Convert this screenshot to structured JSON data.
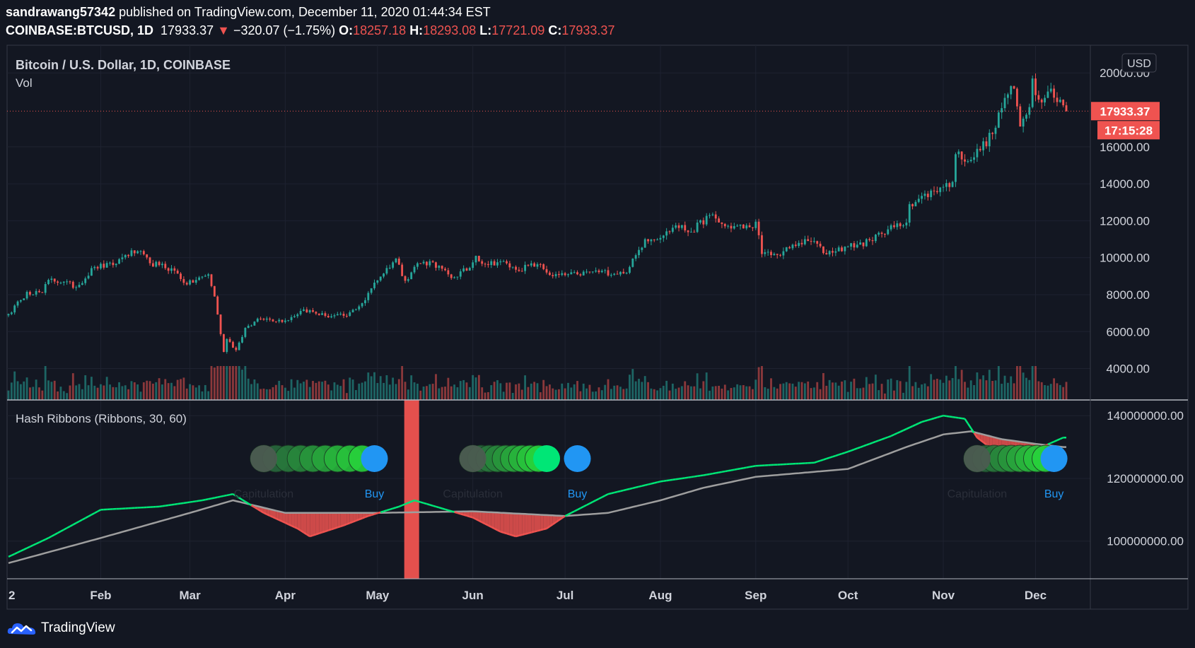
{
  "header": {
    "author": "sandrawang57342",
    "published": "published on TradingView.com, December 11, 2020 01:44:34 EST",
    "symbol": "COINBASE:BTCUSD, 1D",
    "last": "17933.37",
    "change_arrow": "▼",
    "change": "−320.07 (−1.75%)",
    "o_label": "O:",
    "o": "18257.18",
    "h_label": "H:",
    "h": "18293.08",
    "l_label": "L:",
    "l": "17721.09",
    "c_label": "C:",
    "c": "17933.37"
  },
  "brand": {
    "name": "TradingView",
    "icon": "tradingview-cloud-logo-icon"
  },
  "colors": {
    "background": "#131722",
    "grid": "#1e2230",
    "text": "#d1d4dc",
    "up": "#26a69a",
    "down": "#ef5350",
    "hash_fast": "#00e676",
    "hash_slow": "#9e9e9e",
    "buy": "#2196f3",
    "capitulation_text": "#2a2e39",
    "highlight": "#ef5350"
  },
  "chart_data": [
    {
      "type": "candlestick",
      "title": "Bitcoin / U.S. Dollar, 1D, COINBASE",
      "legend": [
        "Vol"
      ],
      "currency": "USD",
      "last_price": "17933.37",
      "countdown": "17:15:28",
      "y_ticks": [
        "20000.00",
        "16000.00",
        "14000.00",
        "12000.00",
        "10000.00",
        "8000.00",
        "6000.00",
        "4000.00"
      ],
      "ylim": [
        2300,
        21500
      ],
      "x_ticks": [
        "2",
        "Feb",
        "Mar",
        "Apr",
        "May",
        "Jun",
        "Jul",
        "Aug",
        "Sep",
        "Oct",
        "Nov",
        "Dec"
      ],
      "xlim": [
        "2020-01-02",
        "2020-12-11"
      ],
      "close_anchors": [
        [
          "2020-01-02",
          6950
        ],
        [
          "2020-01-06",
          7700
        ],
        [
          "2020-01-08",
          8150
        ],
        [
          "2020-01-13",
          8100
        ],
        [
          "2020-01-15",
          8800
        ],
        [
          "2020-01-20",
          8700
        ],
        [
          "2020-01-24",
          8400
        ],
        [
          "2020-01-30",
          9500
        ],
        [
          "2020-02-05",
          9600
        ],
        [
          "2020-02-09",
          10150
        ],
        [
          "2020-02-13",
          10350
        ],
        [
          "2020-02-17",
          9700
        ],
        [
          "2020-02-20",
          9600
        ],
        [
          "2020-02-25",
          9300
        ],
        [
          "2020-02-29",
          8550
        ],
        [
          "2020-03-07",
          9100
        ],
        [
          "2020-03-09",
          7900
        ],
        [
          "2020-03-12",
          4900
        ],
        [
          "2020-03-13",
          5600
        ],
        [
          "2020-03-16",
          5000
        ],
        [
          "2020-03-19",
          6200
        ],
        [
          "2020-03-24",
          6700
        ],
        [
          "2020-04-01",
          6600
        ],
        [
          "2020-04-07",
          7200
        ],
        [
          "2020-04-14",
          6850
        ],
        [
          "2020-04-21",
          6850
        ],
        [
          "2020-04-27",
          7700
        ],
        [
          "2020-04-30",
          8650
        ],
        [
          "2020-05-07",
          9950
        ],
        [
          "2020-05-10",
          8750
        ],
        [
          "2020-05-14",
          9700
        ],
        [
          "2020-05-19",
          9750
        ],
        [
          "2020-05-25",
          8900
        ],
        [
          "2020-05-31",
          9450
        ],
        [
          "2020-06-02",
          10100
        ],
        [
          "2020-06-05",
          9650
        ],
        [
          "2020-06-10",
          9800
        ],
        [
          "2020-06-15",
          9350
        ],
        [
          "2020-06-22",
          9650
        ],
        [
          "2020-06-27",
          9000
        ],
        [
          "2020-07-05",
          9100
        ],
        [
          "2020-07-10",
          9250
        ],
        [
          "2020-07-20",
          9150
        ],
        [
          "2020-07-22",
          9500
        ],
        [
          "2020-07-27",
          11000
        ],
        [
          "2020-08-02",
          11200
        ],
        [
          "2020-08-06",
          11750
        ],
        [
          "2020-08-11",
          11400
        ],
        [
          "2020-08-17",
          12300
        ],
        [
          "2020-08-22",
          11700
        ],
        [
          "2020-08-30",
          11650
        ],
        [
          "2020-09-01",
          11950
        ],
        [
          "2020-09-03",
          10200
        ],
        [
          "2020-09-08",
          10150
        ],
        [
          "2020-09-15",
          10800
        ],
        [
          "2020-09-20",
          10900
        ],
        [
          "2020-09-23",
          10250
        ],
        [
          "2020-10-01",
          10600
        ],
        [
          "2020-10-09",
          10900
        ],
        [
          "2020-10-11",
          11350
        ],
        [
          "2020-10-20",
          11900
        ],
        [
          "2020-10-21",
          12900
        ],
        [
          "2020-10-31",
          13800
        ],
        [
          "2020-11-04",
          14100
        ],
        [
          "2020-11-05",
          15600
        ],
        [
          "2020-11-10",
          15300
        ],
        [
          "2020-11-17",
          16700
        ],
        [
          "2020-11-21",
          18650
        ],
        [
          "2020-11-24",
          19150
        ],
        [
          "2020-11-26",
          17100
        ],
        [
          "2020-11-29",
          18150
        ],
        [
          "2020-11-30",
          19700
        ],
        [
          "2020-12-01",
          18800
        ],
        [
          "2020-12-04",
          18650
        ],
        [
          "2020-12-06",
          19150
        ],
        [
          "2020-12-09",
          18550
        ],
        [
          "2020-12-10",
          18250
        ],
        [
          "2020-12-11",
          17933
        ]
      ]
    },
    {
      "type": "line",
      "title": "Hash Ribbons (Ribbons, 30, 60)",
      "y_ticks": [
        "140000000.00",
        "120000000.00",
        "100000000.00"
      ],
      "ylim": [
        88000000,
        145000000
      ],
      "series": [
        {
          "points": [
            [
              "2020-01-02",
              95000000
            ],
            [
              "2020-01-15",
              101000000
            ],
            [
              "2020-02-01",
              110000000
            ],
            [
              "2020-02-20",
              111000000
            ],
            [
              "2020-03-05",
              113000000
            ],
            [
              "2020-03-15",
              115000000
            ],
            [
              "2020-03-25",
              109000000
            ],
            [
              "2020-04-05",
              104000000
            ],
            [
              "2020-04-09",
              101500000
            ],
            [
              "2020-04-20",
              105000000
            ],
            [
              "2020-04-28",
              108000000
            ],
            [
              "2020-05-08",
              111000000
            ],
            [
              "2020-05-13",
              113000000
            ],
            [
              "2020-05-20",
              111000000
            ],
            [
              "2020-06-01",
              107500000
            ],
            [
              "2020-06-10",
              103000000
            ],
            [
              "2020-06-15",
              101500000
            ],
            [
              "2020-06-25",
              104000000
            ],
            [
              "2020-07-01",
              108000000
            ],
            [
              "2020-07-15",
              115000000
            ],
            [
              "2020-08-01",
              119000000
            ],
            [
              "2020-08-15",
              121000000
            ],
            [
              "2020-09-01",
              124000000
            ],
            [
              "2020-09-20",
              125000000
            ],
            [
              "2020-10-01",
              128500000
            ],
            [
              "2020-10-15",
              133500000
            ],
            [
              "2020-10-25",
              138000000
            ],
            [
              "2020-11-01",
              140000000
            ],
            [
              "2020-11-08",
              139000000
            ],
            [
              "2020-11-12",
              133000000
            ],
            [
              "2020-11-20",
              127000000
            ],
            [
              "2020-11-26",
              122500000
            ],
            [
              "2020-12-03",
              130000000
            ],
            [
              "2020-12-10",
              133000000
            ]
          ]
        },
        {
          "points": [
            [
              "2020-01-02",
              93000000
            ],
            [
              "2020-02-01",
              101000000
            ],
            [
              "2020-03-01",
              109000000
            ],
            [
              "2020-03-15",
              113000000
            ],
            [
              "2020-04-01",
              109000000
            ],
            [
              "2020-05-01",
              109000000
            ],
            [
              "2020-06-01",
              109500000
            ],
            [
              "2020-07-01",
              108000000
            ],
            [
              "2020-07-15",
              109000000
            ],
            [
              "2020-08-01",
              113000000
            ],
            [
              "2020-08-15",
              117000000
            ],
            [
              "2020-09-01",
              120500000
            ],
            [
              "2020-10-01",
              123000000
            ],
            [
              "2020-10-20",
              130000000
            ],
            [
              "2020-11-01",
              134000000
            ],
            [
              "2020-11-10",
              135000000
            ],
            [
              "2020-11-20",
              132500000
            ],
            [
              "2020-12-01",
              131000000
            ],
            [
              "2020-12-10",
              130000000
            ]
          ]
        }
      ],
      "signals": [
        {
          "capitulation_date": "2020-03-25",
          "buy_date": "2020-04-30",
          "capitulation_label": "Capitulation",
          "buy_label": "Buy"
        },
        {
          "capitulation_date": "2020-06-01",
          "buy_date": "2020-06-25",
          "capitulation_label": "Capitulation",
          "buy_label": ""
        },
        {
          "capitulation_date": "",
          "buy_date": "2020-07-05",
          "capitulation_label": "",
          "buy_label": "Buy"
        },
        {
          "capitulation_date": "2020-11-12",
          "buy_date": "2020-12-07",
          "capitulation_label": "Capitulation",
          "buy_label": "Buy"
        }
      ],
      "highlight_date": "2020-05-12"
    }
  ]
}
